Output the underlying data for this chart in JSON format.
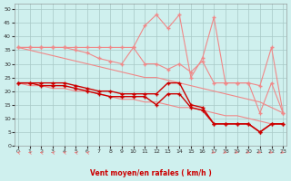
{
  "x": [
    0,
    1,
    2,
    3,
    4,
    5,
    6,
    7,
    8,
    9,
    10,
    11,
    12,
    13,
    14,
    15,
    16,
    17,
    18,
    19,
    20,
    21,
    22,
    23
  ],
  "rafales_spiky": [
    36,
    36,
    36,
    36,
    36,
    36,
    36,
    36,
    36,
    36,
    36,
    44,
    48,
    43,
    48,
    25,
    32,
    47,
    23,
    23,
    23,
    12,
    23,
    12
  ],
  "rafales_smooth": [
    36,
    36,
    36,
    36,
    36,
    35,
    34,
    32,
    31,
    30,
    36,
    30,
    30,
    28,
    30,
    27,
    31,
    23,
    23,
    23,
    23,
    22,
    36,
    12
  ],
  "vent_high": [
    23,
    23,
    23,
    23,
    23,
    22,
    21,
    20,
    20,
    19,
    19,
    19,
    19,
    23,
    23,
    15,
    14,
    8,
    8,
    8,
    8,
    5,
    8,
    8
  ],
  "vent_low": [
    23,
    23,
    22,
    22,
    22,
    21,
    20,
    19,
    18,
    18,
    18,
    18,
    15,
    19,
    19,
    14,
    13,
    8,
    8,
    8,
    8,
    5,
    8,
    8
  ],
  "trend_rafales": [
    36,
    35,
    34,
    33,
    32,
    31,
    30,
    29,
    28,
    27,
    26,
    25,
    25,
    24,
    23,
    22,
    21,
    20,
    19,
    18,
    17,
    16,
    14,
    12
  ],
  "trend_vent": [
    23,
    22,
    22,
    21,
    21,
    20,
    20,
    19,
    18,
    17,
    17,
    16,
    16,
    15,
    14,
    14,
    13,
    12,
    11,
    11,
    10,
    9,
    8,
    8
  ],
  "xlabel": "Vent moyen/en rafales ( km/h )",
  "ylim": [
    0,
    52
  ],
  "xlim": [
    -0.3,
    23.3
  ],
  "yticks": [
    0,
    5,
    10,
    15,
    20,
    25,
    30,
    35,
    40,
    45,
    50
  ],
  "xticks": [
    0,
    1,
    2,
    3,
    4,
    5,
    6,
    7,
    8,
    9,
    10,
    11,
    12,
    13,
    14,
    15,
    16,
    17,
    18,
    19,
    20,
    21,
    22,
    23
  ],
  "bg_color": "#cff0ee",
  "grid_color": "#a8c8c6",
  "color_light": "#f08888",
  "color_dark": "#cc0000",
  "arrow_angles": [
    225,
    225,
    225,
    225,
    225,
    225,
    225,
    270,
    270,
    270,
    270,
    270,
    270,
    270,
    270,
    270,
    270,
    315,
    315,
    315,
    315,
    315,
    315,
    315
  ]
}
